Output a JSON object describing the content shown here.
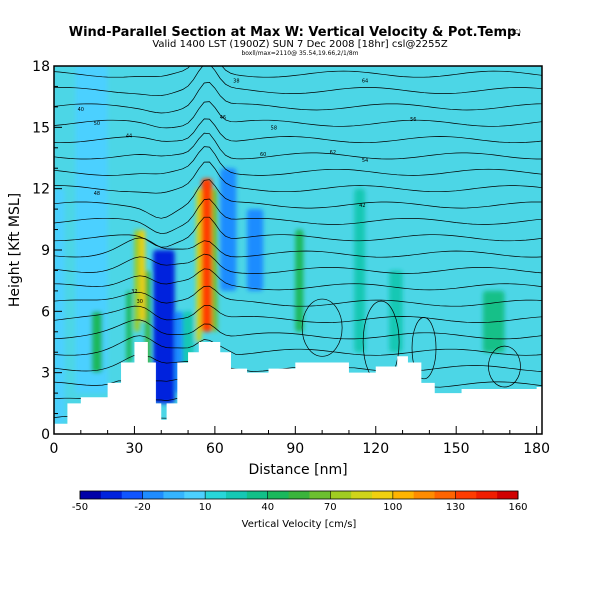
{
  "header": {
    "title": "Wind-Parallel Section at Max W: Vertical Velocity & Pot.Temp.",
    "copyright": "(C)",
    "valid_line": "Valid 1400 LST (1900Z) SUN 7 Dec 2008 [18hr] csl@2255Z",
    "model_line": "boxll/max=2110@ 35.54,19.66,2/1/8m"
  },
  "chart_data": {
    "type": "heatmap",
    "xlabel": "Distance [nm]",
    "ylabel": "Height [Kft MSL]",
    "xlim": [
      0,
      182
    ],
    "ylim": [
      0,
      18
    ],
    "x_ticks": [
      "0",
      "30",
      "60",
      "90",
      "120",
      "150",
      "180"
    ],
    "y_ticks": [
      "0",
      "3",
      "6",
      "9",
      "12",
      "15",
      "18"
    ],
    "grid": false,
    "colorbar": {
      "label": "Vertical Velocity [cm/s]",
      "placement": "bottom",
      "tick_labels": [
        "-50",
        "-20",
        "10",
        "40",
        "70",
        "100",
        "130",
        "160"
      ],
      "levels": [
        -50,
        -40,
        -30,
        -20,
        -10,
        0,
        10,
        20,
        30,
        40,
        50,
        60,
        70,
        80,
        90,
        100,
        110,
        120,
        130,
        140,
        150,
        160
      ],
      "colors": [
        "#0000a8",
        "#0022dd",
        "#1155ff",
        "#1f8cff",
        "#35b4ff",
        "#4cd0ff",
        "#27d6d9",
        "#15c8b4",
        "#12c088",
        "#1ab85c",
        "#3ab43c",
        "#6cc030",
        "#a0cc22",
        "#cfd41a",
        "#f0d010",
        "#ffb400",
        "#ff8c00",
        "#ff6400",
        "#ff3c00",
        "#f01e00",
        "#d00000"
      ]
    },
    "vertical_velocity_cells": [
      {
        "x": [
          0,
          4
        ],
        "y": [
          0.5,
          12
        ],
        "w": 0
      },
      {
        "x": [
          8,
          20
        ],
        "y": [
          2,
          18
        ],
        "w": 5
      },
      {
        "x": [
          14,
          18
        ],
        "y": [
          3,
          6
        ],
        "w": 40
      },
      {
        "x": [
          27,
          29
        ],
        "y": [
          3.5,
          7
        ],
        "w": 40
      },
      {
        "x": [
          30,
          32
        ],
        "y": [
          5,
          10
        ],
        "w": 70
      },
      {
        "x": [
          32,
          34
        ],
        "y": [
          5.5,
          10
        ],
        "w": 90
      },
      {
        "x": [
          34,
          36
        ],
        "y": [
          3,
          8
        ],
        "w": 55
      },
      {
        "x": [
          37,
          45
        ],
        "y": [
          1.5,
          9
        ],
        "w": -40
      },
      {
        "x": [
          45,
          48
        ],
        "y": [
          2,
          6
        ],
        "w": -20
      },
      {
        "x": [
          48,
          52
        ],
        "y": [
          3,
          6
        ],
        "w": 20
      },
      {
        "x": [
          53,
          55
        ],
        "y": [
          4.5,
          12
        ],
        "w": 80
      },
      {
        "x": [
          55,
          59
        ],
        "y": [
          5,
          12.5
        ],
        "w": 130
      },
      {
        "x": [
          59,
          61
        ],
        "y": [
          5,
          12
        ],
        "w": 60
      },
      {
        "x": [
          62,
          68
        ],
        "y": [
          7,
          13
        ],
        "w": -20
      },
      {
        "x": [
          72,
          78
        ],
        "y": [
          7,
          11
        ],
        "w": -20
      },
      {
        "x": [
          90,
          93
        ],
        "y": [
          5,
          10
        ],
        "w": 40
      },
      {
        "x": [
          112,
          116
        ],
        "y": [
          4,
          12
        ],
        "w": 20
      },
      {
        "x": [
          125,
          130
        ],
        "y": [
          4,
          8
        ],
        "w": 20
      },
      {
        "x": [
          160,
          168
        ],
        "y": [
          4,
          7
        ],
        "w": 30
      }
    ],
    "theta_contour_labels": [
      "32",
      "30",
      "48",
      "50",
      "44",
      "46",
      "58",
      "60",
      "38",
      "64",
      "56",
      "54",
      "62",
      "42",
      "40"
    ],
    "terrain_top_kft": [
      [
        0,
        0.5
      ],
      [
        5,
        1.5
      ],
      [
        10,
        1.8
      ],
      [
        15,
        1.8
      ],
      [
        20,
        2.5
      ],
      [
        25,
        3.5
      ],
      [
        30,
        4.5
      ],
      [
        35,
        3.5
      ],
      [
        38,
        1.5
      ],
      [
        40,
        0.7
      ],
      [
        42,
        1.5
      ],
      [
        46,
        3.5
      ],
      [
        50,
        4.0
      ],
      [
        54,
        4.5
      ],
      [
        58,
        4.5
      ],
      [
        62,
        4.0
      ],
      [
        66,
        3.2
      ],
      [
        72,
        3.0
      ],
      [
        80,
        3.2
      ],
      [
        90,
        3.5
      ],
      [
        100,
        3.5
      ],
      [
        110,
        3.0
      ],
      [
        120,
        3.3
      ],
      [
        128,
        3.8
      ],
      [
        132,
        3.5
      ],
      [
        137,
        2.5
      ],
      [
        142,
        2.0
      ],
      [
        152,
        2.2
      ],
      [
        165,
        2.2
      ],
      [
        180,
        2.3
      ]
    ]
  }
}
